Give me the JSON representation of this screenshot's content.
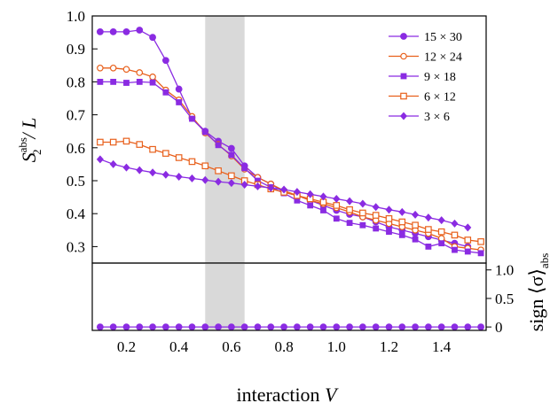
{
  "chart_data": [
    {
      "type": "line",
      "panel": "top",
      "ylabel": {
        "main": "S",
        "sup": "abs",
        "sub": "2",
        "tail": "/ L"
      },
      "xlabel": "interaction V",
      "xlim": [
        0.07,
        1.57
      ],
      "ylim": [
        0.25,
        1.0
      ],
      "x_ticks": [
        "0.2",
        "0.4",
        "0.6",
        "0.8",
        "1.0",
        "1.2",
        "1.4"
      ],
      "y_ticks": [
        "0.3",
        "0.4",
        "0.5",
        "0.6",
        "0.7",
        "0.8",
        "0.9",
        "1.0"
      ],
      "shaded_region": [
        0.5,
        0.65
      ],
      "shade_color": "#d9d9d9",
      "legend_position": "top-right",
      "series": [
        {
          "name": "15 × 30",
          "color": "#8a2be2",
          "marker": "circle",
          "x": [
            0.1,
            0.15,
            0.2,
            0.25,
            0.3,
            0.35,
            0.4,
            0.45,
            0.5,
            0.55,
            0.6,
            0.65,
            0.7,
            0.75,
            0.8,
            0.85,
            0.9,
            0.95,
            1.0,
            1.05,
            1.1,
            1.15,
            1.2,
            1.25,
            1.3,
            1.35,
            1.4,
            1.45,
            1.5
          ],
          "y": [
            0.952,
            0.952,
            0.952,
            0.957,
            0.935,
            0.865,
            0.778,
            0.69,
            0.65,
            0.62,
            0.598,
            0.545,
            0.51,
            0.49,
            0.465,
            0.455,
            0.44,
            0.425,
            0.41,
            0.398,
            0.39,
            0.375,
            0.36,
            0.35,
            0.34,
            0.33,
            0.32,
            0.31,
            0.3
          ]
        },
        {
          "name": "12 × 24",
          "color": "#e8601c",
          "marker": "circle-open",
          "x": [
            0.1,
            0.15,
            0.2,
            0.25,
            0.3,
            0.35,
            0.4,
            0.45,
            0.5,
            0.55,
            0.6,
            0.65,
            0.7,
            0.75,
            0.8,
            0.85,
            0.9,
            0.95,
            1.0,
            1.05,
            1.1,
            1.15,
            1.2,
            1.25,
            1.3,
            1.35,
            1.4,
            1.45,
            1.5,
            1.55
          ],
          "y": [
            0.842,
            0.842,
            0.838,
            0.828,
            0.815,
            0.775,
            0.745,
            0.695,
            0.645,
            0.61,
            0.575,
            0.535,
            0.51,
            0.49,
            0.47,
            0.455,
            0.44,
            0.43,
            0.418,
            0.405,
            0.39,
            0.38,
            0.37,
            0.36,
            0.35,
            0.34,
            0.325,
            0.3,
            0.295,
            0.29
          ]
        },
        {
          "name": "9 × 18",
          "color": "#8a2be2",
          "marker": "square",
          "x": [
            0.1,
            0.15,
            0.2,
            0.25,
            0.3,
            0.35,
            0.4,
            0.45,
            0.5,
            0.55,
            0.6,
            0.65,
            0.7,
            0.75,
            0.8,
            0.85,
            0.9,
            0.95,
            1.0,
            1.05,
            1.1,
            1.15,
            1.2,
            1.25,
            1.3,
            1.35,
            1.4,
            1.45,
            1.5,
            1.55
          ],
          "y": [
            0.8,
            0.8,
            0.797,
            0.8,
            0.798,
            0.768,
            0.738,
            0.688,
            0.648,
            0.608,
            0.578,
            0.538,
            0.5,
            0.48,
            0.462,
            0.44,
            0.425,
            0.41,
            0.385,
            0.372,
            0.365,
            0.355,
            0.345,
            0.335,
            0.322,
            0.3,
            0.31,
            0.29,
            0.285,
            0.28
          ]
        },
        {
          "name": "6 × 12",
          "color": "#e8601c",
          "marker": "square-open",
          "x": [
            0.1,
            0.15,
            0.2,
            0.25,
            0.3,
            0.35,
            0.4,
            0.45,
            0.5,
            0.55,
            0.6,
            0.65,
            0.7,
            0.75,
            0.8,
            0.85,
            0.9,
            0.95,
            1.0,
            1.05,
            1.1,
            1.15,
            1.2,
            1.25,
            1.3,
            1.35,
            1.4,
            1.45,
            1.5,
            1.55
          ],
          "y": [
            0.617,
            0.617,
            0.62,
            0.61,
            0.595,
            0.583,
            0.57,
            0.558,
            0.545,
            0.53,
            0.515,
            0.5,
            0.488,
            0.475,
            0.465,
            0.455,
            0.445,
            0.435,
            0.425,
            0.412,
            0.402,
            0.395,
            0.385,
            0.375,
            0.365,
            0.352,
            0.345,
            0.335,
            0.32,
            0.315
          ]
        },
        {
          "name": "3 × 6",
          "color": "#8a2be2",
          "marker": "diamond",
          "x": [
            0.1,
            0.15,
            0.2,
            0.25,
            0.3,
            0.35,
            0.4,
            0.45,
            0.5,
            0.55,
            0.6,
            0.65,
            0.7,
            0.75,
            0.8,
            0.85,
            0.9,
            0.95,
            1.0,
            1.05,
            1.1,
            1.15,
            1.2,
            1.25,
            1.3,
            1.35,
            1.4,
            1.45,
            1.5
          ],
          "y": [
            0.565,
            0.55,
            0.54,
            0.532,
            0.525,
            0.518,
            0.512,
            0.507,
            0.502,
            0.497,
            0.493,
            0.488,
            0.483,
            0.478,
            0.473,
            0.466,
            0.459,
            0.452,
            0.445,
            0.438,
            0.43,
            0.42,
            0.412,
            0.405,
            0.397,
            0.388,
            0.38,
            0.37,
            0.358
          ]
        }
      ]
    },
    {
      "type": "line",
      "panel": "bottom",
      "ylabel": {
        "main": "sign ⟨σ⟩",
        "sub": "abs"
      },
      "xlim": [
        0.07,
        1.57
      ],
      "ylim": [
        -0.06,
        1.12
      ],
      "y_ticks": [
        "0",
        "0.5",
        "1.0"
      ],
      "y_axis_side": "right",
      "shaded_region": [
        0.5,
        0.65
      ],
      "series_note": "all series coincide",
      "series": [
        {
          "name": "15 × 30",
          "color": "#8a2be2",
          "marker": "circle",
          "x": [
            0.1,
            0.15,
            0.2,
            0.25,
            0.3,
            0.35,
            0.4,
            0.45,
            0.5,
            0.55,
            0.6,
            0.65,
            0.7,
            0.75,
            0.8,
            0.85,
            0.9,
            0.95,
            1.0,
            1.05,
            1.1,
            1.15,
            1.2,
            1.25,
            1.3,
            1.35,
            1.4,
            1.45,
            1.5,
            1.55
          ],
          "y": [
            0,
            0,
            0,
            0,
            0,
            0,
            0,
            0,
            0,
            0,
            0,
            0,
            0,
            0,
            0,
            0,
            0,
            0,
            0,
            0,
            0,
            0,
            0,
            0,
            0,
            0,
            0,
            0,
            0,
            0
          ]
        }
      ]
    }
  ]
}
